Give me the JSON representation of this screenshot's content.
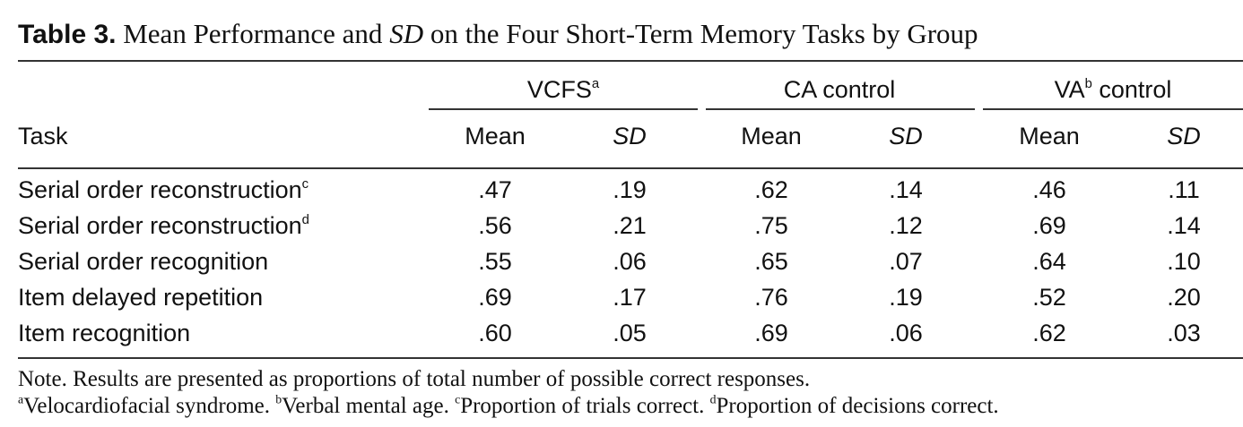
{
  "caption": {
    "lead": "Table 3.",
    "text_before_em": " Mean Performance and ",
    "em": "SD",
    "text_after_em": " on the Four Short-Term Memory Tasks by Group"
  },
  "groups": [
    {
      "label": "VCFS",
      "sup": "a"
    },
    {
      "label": "CA control",
      "sup": ""
    },
    {
      "label": "VA",
      "sup": "b",
      "suffix": " control"
    }
  ],
  "columns": {
    "task": "Task",
    "mean": "Mean",
    "sd": "SD"
  },
  "rows": [
    {
      "task": "Serial order reconstruction",
      "sup": "c",
      "values": [
        ".47",
        ".19",
        ".62",
        ".14",
        ".46",
        ".11"
      ]
    },
    {
      "task": "Serial order reconstruction",
      "sup": "d",
      "values": [
        ".56",
        ".21",
        ".75",
        ".12",
        ".69",
        ".14"
      ]
    },
    {
      "task": "Serial order recognition",
      "sup": "",
      "values": [
        ".55",
        ".06",
        ".65",
        ".07",
        ".64",
        ".10"
      ]
    },
    {
      "task": "Item delayed repetition",
      "sup": "",
      "values": [
        ".69",
        ".17",
        ".76",
        ".19",
        ".52",
        ".20"
      ]
    },
    {
      "task": "Item recognition",
      "sup": "",
      "values": [
        ".60",
        ".05",
        ".69",
        ".06",
        ".62",
        ".03"
      ]
    }
  ],
  "notes": {
    "line1": "Note. Results are presented as proportions of total number of possible correct responses.",
    "line2": [
      {
        "sup": "a",
        "text": "Velocardiofacial syndrome. "
      },
      {
        "sup": "b",
        "text": "Verbal mental age. "
      },
      {
        "sup": "c",
        "text": "Proportion of trials correct. "
      },
      {
        "sup": "d",
        "text": "Proportion of decisions correct."
      }
    ]
  }
}
